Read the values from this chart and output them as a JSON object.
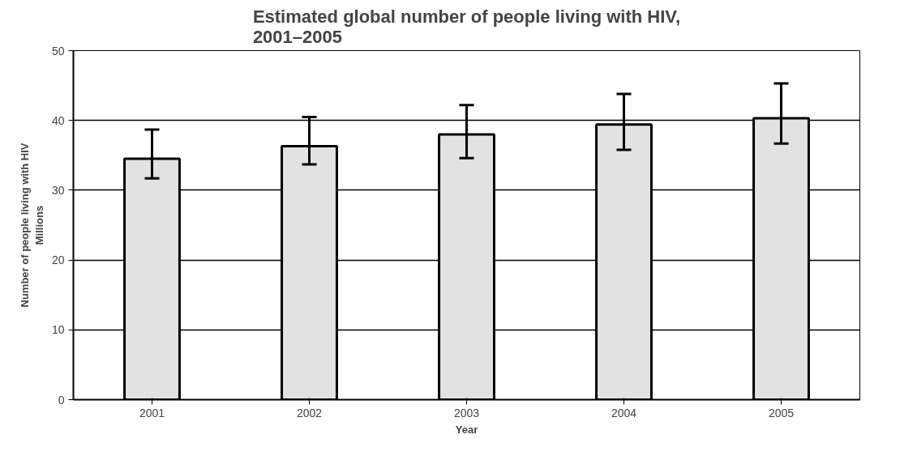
{
  "chart_data": {
    "type": "bar",
    "title": "Estimated global number of people living with HIV,\n2001–2005",
    "xlabel": "Year",
    "ylabel": "Number of people living with HIV\nMillions",
    "categories": [
      "2001",
      "2002",
      "2003",
      "2004",
      "2005"
    ],
    "values": [
      34.5,
      36.3,
      38.0,
      39.4,
      40.3
    ],
    "errors": [
      [
        31.7,
        38.7
      ],
      [
        33.7,
        40.5
      ],
      [
        34.6,
        42.2
      ],
      [
        35.8,
        43.8
      ],
      [
        36.7,
        45.3
      ]
    ],
    "color": "#e2e2e2",
    "ylim": [
      0,
      50
    ],
    "yticks": [
      0,
      10,
      20,
      30,
      40,
      50
    ],
    "grid": "y"
  }
}
